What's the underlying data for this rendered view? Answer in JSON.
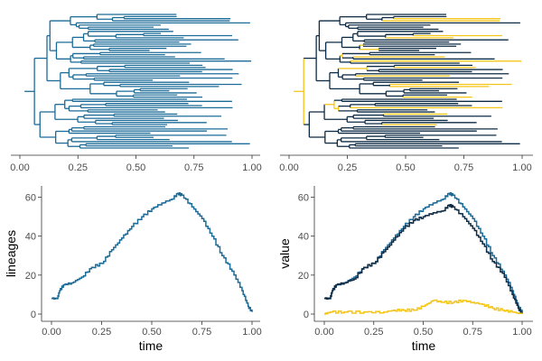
{
  "colors": {
    "lineages": "#1b6b98",
    "total": "#1b6b98",
    "dark": "#0d2b45",
    "highlight": "#f5c518",
    "axis": "#333333"
  },
  "chart_data": [
    {
      "type": "tree",
      "panel": "top-left",
      "xlim": [
        0,
        1
      ],
      "x_ticks": [
        "0.00",
        "0.25",
        "0.50",
        "0.75",
        "1.00"
      ],
      "tips": 64,
      "description_colors": [
        "lineages"
      ]
    },
    {
      "type": "tree",
      "panel": "top-right",
      "xlim": [
        0,
        1
      ],
      "x_ticks": [
        "0.00",
        "0.25",
        "0.50",
        "0.75",
        "1.00"
      ],
      "tips": 64,
      "description_colors": [
        "dark",
        "highlight"
      ]
    },
    {
      "type": "line",
      "panel": "bottom-left",
      "xlabel": "time",
      "ylabel": "lineages",
      "xlim": [
        0,
        1
      ],
      "ylim": [
        0,
        63
      ],
      "x_ticks": [
        "0.00",
        "0.25",
        "0.50",
        "0.75",
        "1.00"
      ],
      "y_ticks": [
        "0",
        "20",
        "40",
        "60"
      ],
      "series": [
        {
          "color": "total",
          "x": [
            0.0,
            0.03,
            0.04,
            0.06,
            0.1,
            0.15,
            0.2,
            0.25,
            0.3,
            0.35,
            0.4,
            0.45,
            0.5,
            0.55,
            0.6,
            0.63,
            0.65,
            0.7,
            0.75,
            0.8,
            0.85,
            0.9,
            0.95,
            0.98,
            1.0
          ],
          "y": [
            8,
            8,
            12,
            15,
            16,
            19,
            24,
            26,
            33,
            39,
            45,
            50,
            54,
            57,
            59,
            62,
            61,
            55,
            49,
            40,
            30,
            22,
            12,
            4,
            1
          ]
        }
      ]
    },
    {
      "type": "line",
      "panel": "bottom-right",
      "xlabel": "time",
      "ylabel": "value",
      "xlim": [
        0,
        1
      ],
      "ylim": [
        0,
        63
      ],
      "x_ticks": [
        "0.00",
        "0.25",
        "0.50",
        "0.75",
        "1.00"
      ],
      "y_ticks": [
        "0",
        "20",
        "40",
        "60"
      ],
      "series": [
        {
          "color": "total",
          "x": [
            0.0,
            0.03,
            0.04,
            0.06,
            0.1,
            0.15,
            0.2,
            0.25,
            0.3,
            0.35,
            0.4,
            0.45,
            0.5,
            0.55,
            0.6,
            0.63,
            0.65,
            0.7,
            0.75,
            0.8,
            0.85,
            0.9,
            0.95,
            0.98,
            1.0
          ],
          "y": [
            8,
            8,
            12,
            15,
            16,
            19,
            24,
            26,
            33,
            39,
            45,
            50,
            54,
            57,
            59,
            62,
            61,
            55,
            49,
            40,
            30,
            22,
            12,
            4,
            1
          ]
        },
        {
          "color": "dark",
          "x": [
            0.0,
            0.03,
            0.04,
            0.06,
            0.1,
            0.15,
            0.2,
            0.25,
            0.3,
            0.35,
            0.4,
            0.45,
            0.5,
            0.55,
            0.6,
            0.63,
            0.65,
            0.7,
            0.75,
            0.8,
            0.85,
            0.9,
            0.95,
            0.98,
            1.0
          ],
          "y": [
            8,
            8,
            12,
            15,
            16,
            18,
            24,
            26,
            32,
            38,
            44,
            48,
            50,
            52,
            53,
            56,
            55,
            50,
            44,
            36,
            27,
            21,
            10,
            3,
            0
          ]
        },
        {
          "color": "highlight",
          "x": [
            0.0,
            0.03,
            0.1,
            0.2,
            0.3,
            0.35,
            0.4,
            0.45,
            0.5,
            0.55,
            0.6,
            0.65,
            0.7,
            0.75,
            0.8,
            0.85,
            0.9,
            0.95,
            1.0
          ],
          "y": [
            0,
            1,
            1,
            1,
            1,
            2,
            2,
            2,
            4,
            7,
            6,
            6,
            7,
            6,
            5,
            3,
            2,
            1,
            0
          ]
        }
      ]
    }
  ]
}
